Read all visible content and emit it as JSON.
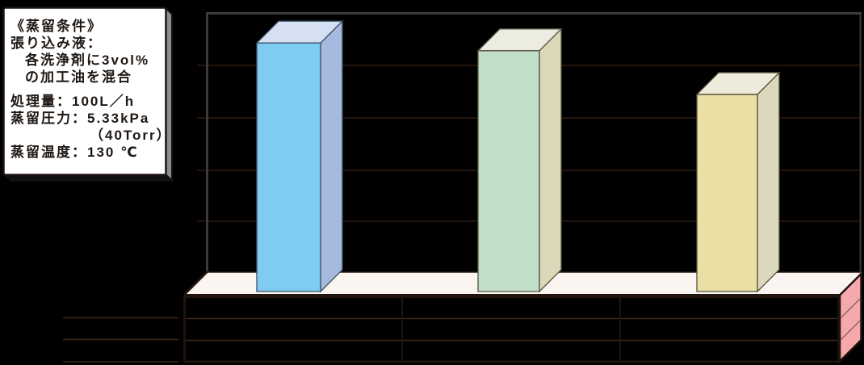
{
  "conditions_box": {
    "lines": [
      "《蒸留条件》",
      "張り込み液：",
      "各洗浄剤に3vol%",
      "の加工油を混合",
      "処理量：100L／h",
      "蒸留圧力：5.33kPa",
      "（40Torr）",
      "蒸留温度：130 ℃"
    ]
  },
  "palette": {
    "background": "#000000",
    "floor": "#fbf5f2",
    "table_side": "#f6a9ad",
    "box_face": "#ffffff",
    "box_side": "#8d8d8b",
    "text": "#1f1713"
  },
  "chart_data": {
    "type": "bar",
    "style": "3d-column-with-data-table",
    "title": "",
    "title_visible": false,
    "legend_visible": false,
    "y_axis": {
      "tick_labels_visible": false,
      "gridline_intervals": 5,
      "range_gridline_units": [
        0,
        5
      ],
      "grid_on": true
    },
    "x_axis": {
      "tick_labels_visible": false,
      "categories_visible_text": [
        "",
        "",
        ""
      ]
    },
    "data_table": {
      "visible": true,
      "rows": 3,
      "columns": 3,
      "row_label_area": true,
      "cell_text_visible": false
    },
    "bars": [
      {
        "value_gridline_units": 4.78,
        "color_front": "#7eccf2",
        "color_side": "#a5bade",
        "color_top": "#d5e0f2",
        "color_edge": "#3c4f63"
      },
      {
        "value_gridline_units": 4.63,
        "color_front": "#c1dec6",
        "color_side": "#dbd8ba",
        "color_top": "#ecede0",
        "color_edge": "#565340"
      },
      {
        "value_gridline_units": 3.79,
        "color_front": "#eadfa4",
        "color_side": "#dbd8bb",
        "color_top": "#edebdb",
        "color_edge": "#565036"
      }
    ]
  }
}
